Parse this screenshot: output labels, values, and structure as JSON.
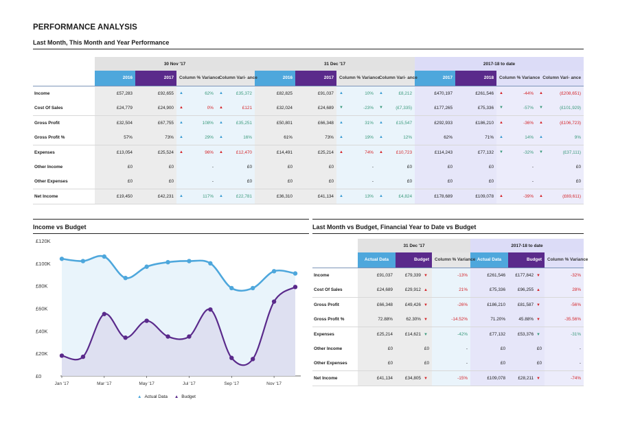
{
  "page": {
    "title": "PERFORMANCE ANALYSIS",
    "subtitle": "Last Month, This Month and Year Performance"
  },
  "perf_table": {
    "groups": [
      "30 Nov '17",
      "31 Dec '17",
      "2017-18 to date"
    ],
    "headers": [
      "2016",
      "2017",
      "Column % Variance",
      "Column Vari- ance",
      "2016",
      "2017",
      "Column % Variance",
      "Column Vari- ance",
      "2017",
      "2018",
      "Column % Variance",
      "Column Vari- ance"
    ],
    "rows": [
      {
        "label": "Income",
        "cells": [
          {
            "v": "£57,283"
          },
          {
            "v": "£92,655"
          },
          {
            "v": "62%",
            "a": "u",
            "c": "pos"
          },
          {
            "v": "£35,372",
            "a": "u",
            "c": "pos"
          },
          {
            "v": "£82,825"
          },
          {
            "v": "£91,037"
          },
          {
            "v": "10%",
            "a": "u",
            "c": "pos"
          },
          {
            "v": "£8,212",
            "a": "u",
            "c": "pos"
          },
          {
            "v": "£470,197"
          },
          {
            "v": "£261,546"
          },
          {
            "v": "-44%",
            "a": "d",
            "c": "neg"
          },
          {
            "v": "(£208,651)",
            "a": "d",
            "c": "neg"
          }
        ]
      },
      {
        "label": "Cost Of Sales",
        "cells": [
          {
            "v": "£24,779"
          },
          {
            "v": "£24,900"
          },
          {
            "v": "0%",
            "a": "d",
            "c": "neg"
          },
          {
            "v": "£121",
            "a": "d",
            "c": "neg"
          },
          {
            "v": "£32,024"
          },
          {
            "v": "£24,689"
          },
          {
            "v": "-23%",
            "a": "g",
            "c": "pos"
          },
          {
            "v": "(£7,335)",
            "a": "g",
            "c": "pos"
          },
          {
            "v": "£177,265"
          },
          {
            "v": "£75,336"
          },
          {
            "v": "-57%",
            "a": "g",
            "c": "pos"
          },
          {
            "v": "(£101,929)",
            "a": "g",
            "c": "pos"
          }
        ]
      },
      {
        "label": "Gross Profit",
        "cells": [
          {
            "v": "£32,504"
          },
          {
            "v": "£67,755"
          },
          {
            "v": "108%",
            "a": "u",
            "c": "pos"
          },
          {
            "v": "£35,251",
            "a": "u",
            "c": "pos"
          },
          {
            "v": "£50,801"
          },
          {
            "v": "£66,348"
          },
          {
            "v": "31%",
            "a": "u",
            "c": "pos"
          },
          {
            "v": "£15,547",
            "a": "u",
            "c": "pos"
          },
          {
            "v": "£292,933"
          },
          {
            "v": "£186,210"
          },
          {
            "v": "-36%",
            "a": "d",
            "c": "neg"
          },
          {
            "v": "(£106,723)",
            "a": "d",
            "c": "neg"
          }
        ]
      },
      {
        "label": "Gross Profit %",
        "cells": [
          {
            "v": "57%"
          },
          {
            "v": "73%"
          },
          {
            "v": "29%",
            "a": "u",
            "c": "pos"
          },
          {
            "v": "16%",
            "a": "u",
            "c": "pos"
          },
          {
            "v": "61%"
          },
          {
            "v": "73%"
          },
          {
            "v": "19%",
            "a": "u",
            "c": "pos"
          },
          {
            "v": "12%",
            "a": "u",
            "c": "pos"
          },
          {
            "v": "62%"
          },
          {
            "v": "71%"
          },
          {
            "v": "14%",
            "a": "u",
            "c": "pos"
          },
          {
            "v": "9%",
            "a": "u",
            "c": "pos"
          }
        ]
      },
      {
        "label": "Expenses",
        "cells": [
          {
            "v": "£13,054"
          },
          {
            "v": "£25,524"
          },
          {
            "v": "96%",
            "a": "d",
            "c": "neg"
          },
          {
            "v": "£12,470",
            "a": "d",
            "c": "neg"
          },
          {
            "v": "£14,491"
          },
          {
            "v": "£25,214"
          },
          {
            "v": "74%",
            "a": "d",
            "c": "neg"
          },
          {
            "v": "£10,723",
            "a": "d",
            "c": "neg"
          },
          {
            "v": "£114,243"
          },
          {
            "v": "£77,132"
          },
          {
            "v": "-32%",
            "a": "g",
            "c": "pos"
          },
          {
            "v": "(£37,111)",
            "a": "g",
            "c": "pos"
          }
        ]
      },
      {
        "label": "Other Income",
        "cells": [
          {
            "v": "£0"
          },
          {
            "v": "£0"
          },
          {
            "v": "-"
          },
          {
            "v": "£0"
          },
          {
            "v": "£0"
          },
          {
            "v": "£0"
          },
          {
            "v": "-"
          },
          {
            "v": "£0"
          },
          {
            "v": "£0"
          },
          {
            "v": "£0"
          },
          {
            "v": "-"
          },
          {
            "v": "£0"
          }
        ]
      },
      {
        "label": "Other Expenses",
        "cells": [
          {
            "v": "£0"
          },
          {
            "v": "£0"
          },
          {
            "v": "-"
          },
          {
            "v": "£0"
          },
          {
            "v": "£0"
          },
          {
            "v": "£0"
          },
          {
            "v": "-"
          },
          {
            "v": "£0"
          },
          {
            "v": "£0"
          },
          {
            "v": "£0"
          },
          {
            "v": "-"
          },
          {
            "v": "£0"
          }
        ]
      },
      {
        "label": "Net Income",
        "cells": [
          {
            "v": "£19,450"
          },
          {
            "v": "£42,231"
          },
          {
            "v": "117%",
            "a": "u",
            "c": "pos"
          },
          {
            "v": "£22,781",
            "a": "u",
            "c": "pos"
          },
          {
            "v": "£36,310"
          },
          {
            "v": "£41,134"
          },
          {
            "v": "13%",
            "a": "u",
            "c": "pos"
          },
          {
            "v": "£4,824",
            "a": "u",
            "c": "pos"
          },
          {
            "v": "£178,689"
          },
          {
            "v": "£109,078"
          },
          {
            "v": "-39%",
            "a": "d",
            "c": "neg"
          },
          {
            "v": "(£69,611)",
            "a": "d",
            "c": "neg"
          }
        ]
      }
    ]
  },
  "income_chart": {
    "title": "Income vs Budget",
    "legend": [
      "Actual Data",
      "Budget"
    ]
  },
  "chart_data": {
    "type": "area",
    "x": [
      "Jan '17",
      "Feb '17",
      "Mar '17",
      "Apr '17",
      "May '17",
      "Jun '17",
      "Jul '17",
      "Aug '17",
      "Sep '17",
      "Oct '17",
      "Nov '17",
      "Dec '17"
    ],
    "x_tick_labels": [
      "Jan '17",
      "Mar '17",
      "May '17",
      "Jul '17",
      "Sep '17",
      "Nov '17"
    ],
    "y_tick_labels": [
      "£0",
      "£20K",
      "£40K",
      "£60K",
      "£80K",
      "£100K",
      "£120K"
    ],
    "ylim": [
      0,
      120000
    ],
    "series": [
      {
        "name": "Actual Data",
        "color": "#4ea7dc",
        "values": [
          104000,
          102000,
          106000,
          87000,
          97000,
          101000,
          102000,
          100000,
          78000,
          78000,
          93000,
          91000
        ]
      },
      {
        "name": "Budget",
        "color": "#5a2a8b",
        "values": [
          18000,
          17000,
          55000,
          34000,
          49000,
          35000,
          35000,
          59000,
          16000,
          15000,
          66000,
          79000
        ]
      }
    ],
    "legend_position": "bottom-center"
  },
  "budget_table": {
    "title": "Last Month vs Budget, Financial Year to Date vs Budget",
    "groups": [
      "31 Dec '17",
      "2017-18 to date"
    ],
    "headers": [
      "Actual Data",
      "Budget",
      "Column % Variance",
      "Actual Data",
      "Budget",
      "Column % Variance"
    ],
    "rows": [
      {
        "label": "Income",
        "cells": [
          {
            "v": "£91,037"
          },
          {
            "v": "£79,339",
            "a": "d"
          },
          {
            "v": "-13%",
            "c": "neg"
          },
          {
            "v": "£261,546"
          },
          {
            "v": "£177,842",
            "a": "d"
          },
          {
            "v": "-32%",
            "c": "neg"
          }
        ]
      },
      {
        "label": "Cost Of Sales",
        "cells": [
          {
            "v": "£24,689"
          },
          {
            "v": "£29,912",
            "a": "u"
          },
          {
            "v": "21%",
            "c": "neg"
          },
          {
            "v": "£75,336"
          },
          {
            "v": "£96,255",
            "a": "u"
          },
          {
            "v": "28%",
            "c": "neg"
          }
        ]
      },
      {
        "label": "Gross Profit",
        "cells": [
          {
            "v": "£66,348"
          },
          {
            "v": "£49,426",
            "a": "d"
          },
          {
            "v": "-26%",
            "c": "neg"
          },
          {
            "v": "£186,210"
          },
          {
            "v": "£81,587",
            "a": "d"
          },
          {
            "v": "-56%",
            "c": "neg"
          }
        ]
      },
      {
        "label": "Gross Profit %",
        "cells": [
          {
            "v": "72.88%"
          },
          {
            "v": "62.30%",
            "a": "d"
          },
          {
            "v": "-14.52%",
            "c": "neg"
          },
          {
            "v": "71.20%"
          },
          {
            "v": "45.88%",
            "a": "d"
          },
          {
            "v": "-35.56%",
            "c": "neg"
          }
        ]
      },
      {
        "label": "Expenses",
        "cells": [
          {
            "v": "£25,214"
          },
          {
            "v": "£14,621",
            "a": "g"
          },
          {
            "v": "-42%",
            "c": "pos"
          },
          {
            "v": "£77,132"
          },
          {
            "v": "£53,376",
            "a": "g"
          },
          {
            "v": "-31%",
            "c": "pos"
          }
        ]
      },
      {
        "label": "Other Income",
        "cells": [
          {
            "v": "£0"
          },
          {
            "v": "£0"
          },
          {
            "v": "-"
          },
          {
            "v": "£0"
          },
          {
            "v": "£0"
          },
          {
            "v": "-"
          }
        ]
      },
      {
        "label": "Other Expenses",
        "cells": [
          {
            "v": "£0"
          },
          {
            "v": "£0"
          },
          {
            "v": "-"
          },
          {
            "v": "£0"
          },
          {
            "v": "£0"
          },
          {
            "v": "-"
          }
        ]
      },
      {
        "label": "Net Income",
        "cells": [
          {
            "v": "£41,134"
          },
          {
            "v": "£34,805",
            "a": "d"
          },
          {
            "v": "-15%",
            "c": "neg"
          },
          {
            "v": "£109,078"
          },
          {
            "v": "£28,211",
            "a": "d"
          },
          {
            "v": "-74%",
            "c": "neg"
          }
        ]
      }
    ]
  }
}
